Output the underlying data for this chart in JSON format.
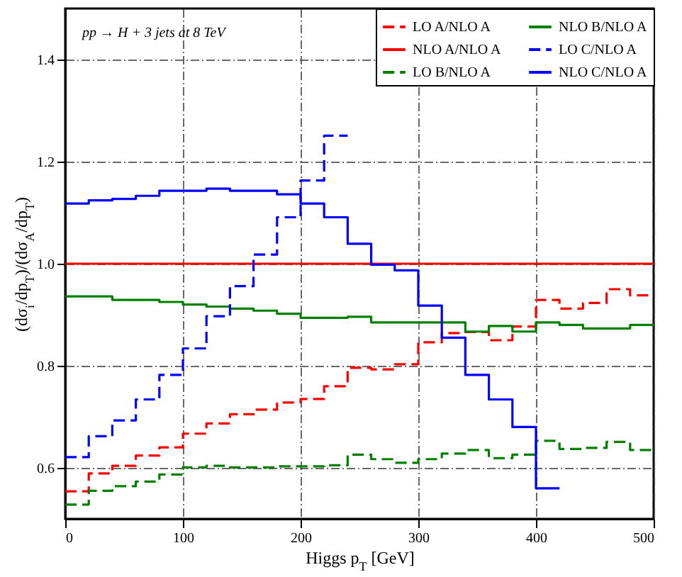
{
  "chart_data": {
    "type": "step",
    "xlabel": "Higgs p$_{T}$ [GeV]",
    "ylabel": "(dσ$_{i}$/dp$_{T}$)/(dσ$_{A}$/dp$_{T}$)",
    "annotations": [
      "pp → H + 3 jets at 8 TeV"
    ],
    "x": [
      0,
      20,
      40,
      60,
      80,
      100,
      120,
      140,
      160,
      180,
      200,
      220,
      240,
      260,
      280,
      300,
      320,
      340,
      360,
      380,
      400,
      420,
      440,
      460,
      480,
      500
    ],
    "series": [
      {
        "name": "LO A/NLO A",
        "color": "#ff0000",
        "line_style": "dashed",
        "values": [
          0.554,
          0.589,
          0.604,
          0.624,
          0.64,
          0.667,
          0.687,
          0.705,
          0.714,
          0.728,
          0.735,
          0.76,
          0.796,
          0.793,
          0.803,
          0.846,
          0.864,
          0.866,
          0.85,
          0.877,
          0.929,
          0.912,
          0.923,
          0.95,
          0.938,
          0.938
        ]
      },
      {
        "name": "NLO A/NLO A",
        "color": "#ff0000",
        "line_style": "solid",
        "values": [
          1,
          1,
          1,
          1,
          1,
          1,
          1,
          1,
          1,
          1,
          1,
          1,
          1,
          1,
          1,
          1,
          1,
          1,
          1,
          1,
          1,
          1,
          1,
          1,
          1,
          1
        ]
      },
      {
        "name": "LO B/NLO A",
        "color": "#008000",
        "line_style": "dashed",
        "values": [
          0.528,
          0.555,
          0.564,
          0.573,
          0.587,
          0.601,
          0.604,
          0.601,
          0.601,
          0.603,
          0.603,
          0.605,
          0.626,
          0.617,
          0.61,
          0.617,
          0.628,
          0.635,
          0.619,
          0.626,
          0.653,
          0.637,
          0.639,
          0.651,
          0.635,
          0.635
        ]
      },
      {
        "name": "NLO B/NLO A",
        "color": "#008000",
        "line_style": "solid",
        "values": [
          0.936,
          0.936,
          0.929,
          0.929,
          0.925,
          0.92,
          0.916,
          0.912,
          0.908,
          0.902,
          0.894,
          0.894,
          0.896,
          0.885,
          0.885,
          0.885,
          0.885,
          0.867,
          0.878,
          0.867,
          0.885,
          0.88,
          0.873,
          0.873,
          0.88,
          0.88
        ]
      },
      {
        "name": "LO C/NLO A",
        "color": "#0000ff",
        "line_style": "dashed",
        "x": [
          0,
          20,
          40,
          60,
          80,
          100,
          120,
          140,
          160,
          180,
          200,
          220,
          240
        ],
        "values": [
          0.621,
          0.662,
          0.693,
          0.734,
          0.782,
          0.834,
          0.897,
          0.956,
          1.018,
          1.091,
          1.163,
          1.251,
          1.251
        ]
      },
      {
        "name": "NLO C/NLO A",
        "color": "#0000ff",
        "line_style": "solid",
        "x": [
          0,
          20,
          40,
          60,
          80,
          100,
          120,
          140,
          160,
          180,
          200,
          220,
          240,
          260,
          280,
          300,
          320,
          340,
          360,
          380,
          400,
          420
        ],
        "values": [
          1.118,
          1.124,
          1.127,
          1.133,
          1.143,
          1.143,
          1.147,
          1.143,
          1.143,
          1.136,
          1.118,
          1.091,
          1.039,
          0.998,
          0.987,
          0.918,
          0.855,
          0.782,
          0.734,
          0.68,
          0.56,
          0.56
        ]
      }
    ],
    "xlim": [
      0,
      500
    ],
    "xticks": [
      0,
      100,
      200,
      300,
      400,
      500
    ],
    "ylim": [
      0.5,
      1.5
    ],
    "yticks": [
      {
        "value": 0.6,
        "label": "0.6"
      },
      {
        "value": 0.8,
        "label": "0.8"
      },
      {
        "value": 1.0,
        "label": "1.0"
      },
      {
        "value": 1.2,
        "label": "1.2"
      },
      {
        "value": 1.4,
        "label": "1.4"
      }
    ],
    "grid": true,
    "legend": "top right"
  }
}
